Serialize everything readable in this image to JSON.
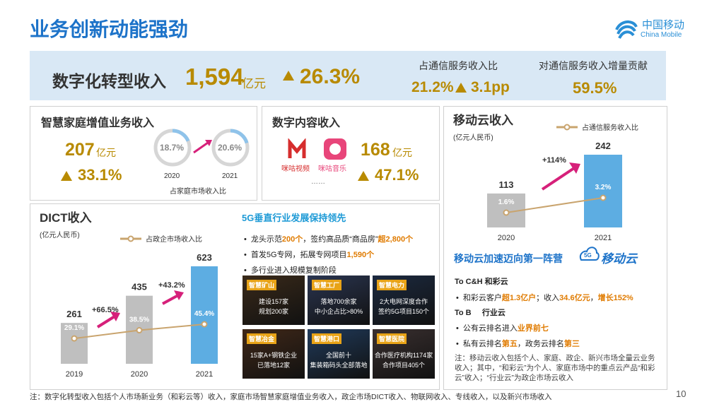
{
  "header": {
    "title": "业务创新动能强劲",
    "logo_cn": "中国移动",
    "logo_en": "China Mobile"
  },
  "banner": {
    "label": "数字化转型收入",
    "value": "1,594",
    "unit": "亿元",
    "growth": "26.3%",
    "share_label": "占通信服务收入比",
    "share": "21.2%",
    "share_change": "3.1pp",
    "contribution_label": "对通信服务收入增量贡献",
    "contribution": "59.5%"
  },
  "smart_home": {
    "title": "智慧家庭增值业务收入",
    "value": "207",
    "unit": "亿元",
    "growth": "33.1%",
    "rings": [
      {
        "value": "18.7%",
        "year": "2020"
      },
      {
        "value": "20.6%",
        "year": "2021"
      }
    ],
    "caption": "占家庭市场收入比"
  },
  "digital_content": {
    "title": "数字内容收入",
    "apps": [
      "咪咕视频",
      "咪咕音乐"
    ],
    "more": "……",
    "value": "168",
    "unit": "亿元",
    "growth": "47.1%"
  },
  "chart_data": [
    {
      "type": "bar",
      "title": "移动云收入",
      "subtitle": "(亿元人民币)",
      "categories": [
        "2020",
        "2021"
      ],
      "series": [
        {
          "values": [
            113,
            242
          ],
          "colors": [
            "#bfbfbf",
            "#5dade2"
          ]
        },
        {
          "type": "line",
          "name": "占通信服务收入比",
          "color": "#c9a46e",
          "axis": "y2",
          "values": [
            1.6,
            3.2
          ],
          "value_labels": [
            "1.6%",
            "3.2%"
          ]
        }
      ],
      "annotations": [
        "+114%"
      ]
    },
    {
      "type": "bar",
      "title": "DICT收入",
      "subtitle": "(亿元人民币)",
      "categories": [
        "2019",
        "2020",
        "2021"
      ],
      "series": [
        {
          "values": [
            261,
            435,
            623
          ],
          "colors": [
            "#bfbfbf",
            "#bfbfbf",
            "#5dade2"
          ]
        },
        {
          "type": "line",
          "name": "占政企市场收入比",
          "color": "#c9a46e",
          "axis": "y2",
          "values": [
            29.1,
            38.5,
            45.4
          ],
          "value_labels": [
            "29.1%",
            "38.5%",
            "45.4%"
          ]
        }
      ],
      "annotations": [
        "+66.5%",
        "+43.2%"
      ]
    }
  ],
  "vertical_5g": {
    "title": "5G垂直行业发展保持领先",
    "bullets": [
      [
        "龙头示范",
        "200个",
        "，签约高品质“商品房”",
        "超2,800个"
      ],
      [
        "首发5G专网，拓展专网项目",
        "1,590个"
      ],
      [
        "多行业进入规模复制阶段"
      ]
    ],
    "tiles": [
      {
        "title": "智慧矿山",
        "lines": [
          "建设157家",
          "规划200家"
        ]
      },
      {
        "title": "智慧工厂",
        "lines": [
          "落地700余家",
          "中小企占比>80%"
        ]
      },
      {
        "title": "智慧电力",
        "lines": [
          "2大电网深度合作",
          "签约5G项目150个"
        ]
      },
      {
        "title": "智慧冶金",
        "lines": [
          "15家A+钢铁企业",
          "已落地12家"
        ]
      },
      {
        "title": "智慧港口",
        "lines": [
          "全国前十",
          "集装箱码头全部落地"
        ]
      },
      {
        "title": "智慧医院",
        "lines": [
          "合作医疗机构1174家",
          "合作项目405个"
        ]
      }
    ]
  },
  "mobile_cloud": {
    "heading": "移动云加速迈向第一阵营",
    "logo_badge": "5G",
    "logo": "移动云",
    "sections": [
      {
        "title": "To C&H",
        "product": "和彩云",
        "bullets": [
          [
            "和彩云客户",
            "超1.3亿户",
            "；收入",
            "34.6亿元",
            "，",
            "增长152%"
          ]
        ]
      },
      {
        "title": "To B",
        "product": "行业云",
        "bullets": [
          [
            "公有云排名进入",
            "业界前七"
          ],
          [
            "私有云排名",
            "第五",
            "，政务云排名",
            "第三"
          ]
        ]
      }
    ],
    "note": "注：移动云收入包括个人、家庭、政企、新兴市场全量云业务收入；其中，“和彩云”为个人、家庭市场中的重点云产品“和彩云”收入；“行业云”为政企市场云收入"
  },
  "footer": {
    "note": "注：数字化转型收入包括个人市场新业务（和彩云等）收入，家庭市场智慧家庭增值业务收入，政企市场DICT收入、物联网收入、专线收入，以及新兴市场收入",
    "page": "10"
  }
}
